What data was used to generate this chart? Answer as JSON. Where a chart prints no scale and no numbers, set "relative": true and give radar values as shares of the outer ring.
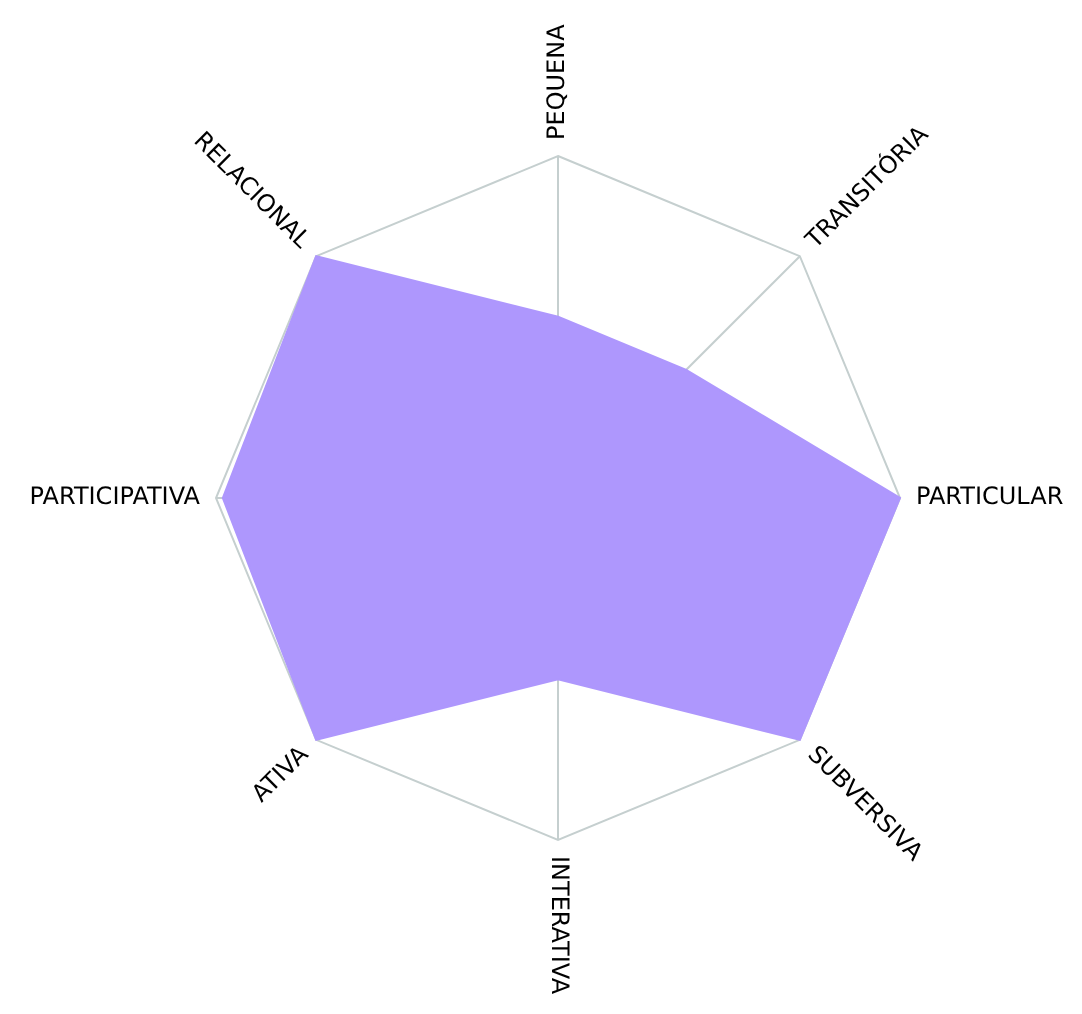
{
  "chart_data": {
    "type": "radar",
    "relative": true,
    "grid": true,
    "legend": false,
    "categories": [
      "PEQUENA",
      "TRANSITÓRIA",
      "PARTICULAR",
      "SUBVERSIVA",
      "INTERATIVA",
      "ATIVA",
      "PARTICIPATIVA",
      "RELACIONAL"
    ],
    "series": [
      {
        "color": "#ae97fd",
        "values": [
          0.53,
          0.53,
          1,
          1,
          0.53,
          1,
          0.98,
          1
        ]
      }
    ]
  }
}
